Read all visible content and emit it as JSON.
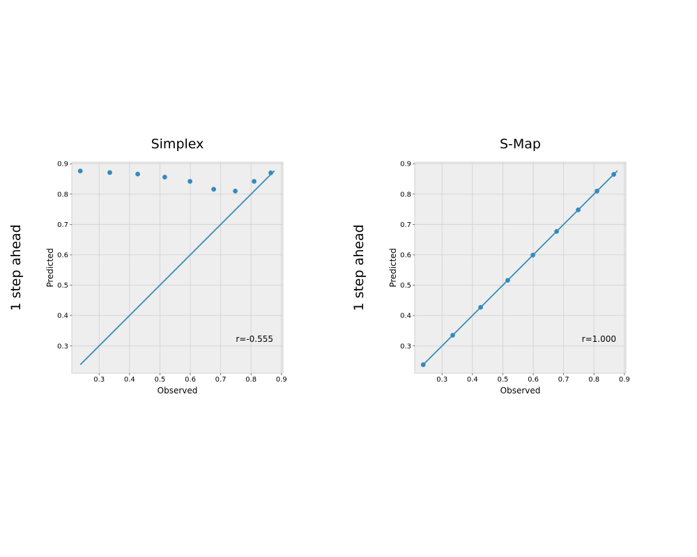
{
  "chart_data": [
    {
      "type": "scatter",
      "title": "Simplex",
      "row_label": "1 step ahead",
      "xlabel": "Observed",
      "ylabel": "Predicted",
      "xlim": [
        0.21,
        0.905
      ],
      "ylim": [
        0.21,
        0.905
      ],
      "xticks": [
        0.3,
        0.4,
        0.5,
        0.6,
        0.7,
        0.8,
        0.9
      ],
      "yticks": [
        0.3,
        0.4,
        0.5,
        0.6,
        0.7,
        0.8,
        0.9
      ],
      "grid": true,
      "annotation": "r=-0.555",
      "points": {
        "x": [
          0.238,
          0.335,
          0.427,
          0.516,
          0.599,
          0.677,
          0.748,
          0.81,
          0.865
        ],
        "y": [
          0.876,
          0.871,
          0.866,
          0.856,
          0.842,
          0.816,
          0.81,
          0.842,
          0.87
        ]
      },
      "reference_line": {
        "x": [
          0.238,
          0.877
        ],
        "y": [
          0.238,
          0.877
        ]
      },
      "color": "#348abd"
    },
    {
      "type": "scatter",
      "title": "S-Map",
      "row_label": "1 step ahead",
      "xlabel": "Observed",
      "ylabel": "Predicted",
      "xlim": [
        0.21,
        0.905
      ],
      "ylim": [
        0.21,
        0.905
      ],
      "xticks": [
        0.3,
        0.4,
        0.5,
        0.6,
        0.7,
        0.8,
        0.9
      ],
      "yticks": [
        0.3,
        0.4,
        0.5,
        0.6,
        0.7,
        0.8,
        0.9
      ],
      "grid": true,
      "annotation": "r=1.000",
      "points": {
        "x": [
          0.238,
          0.335,
          0.427,
          0.516,
          0.599,
          0.677,
          0.748,
          0.81,
          0.865
        ],
        "y": [
          0.238,
          0.335,
          0.427,
          0.516,
          0.599,
          0.677,
          0.748,
          0.81,
          0.865
        ]
      },
      "reference_line": {
        "x": [
          0.238,
          0.877
        ],
        "y": [
          0.238,
          0.877
        ]
      },
      "color": "#348abd"
    }
  ]
}
